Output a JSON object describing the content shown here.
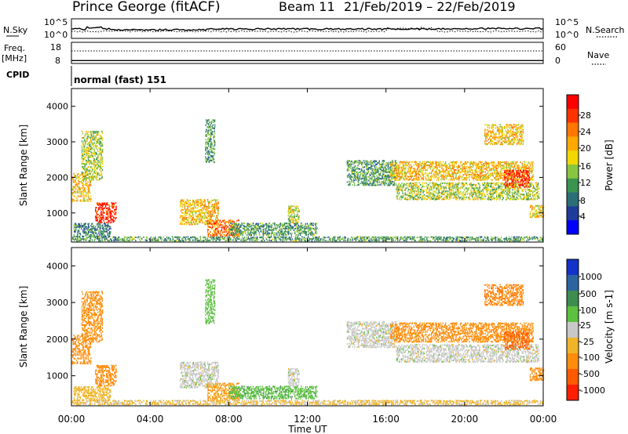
{
  "chart_data": {
    "type": "heatmap",
    "title": "Prince George (fitACF)",
    "header": {
      "beam": "Beam 11",
      "date_range": "21/Feb/2019 – 22/Feb/2019"
    },
    "xlabel": "Time UT",
    "x_ticks": [
      "00:00",
      "04:00",
      "08:00",
      "12:00",
      "16:00",
      "20:00",
      "00:00"
    ],
    "xlim_hours": [
      0,
      24
    ],
    "mode_label": "normal (fast) 151",
    "noise_panel": {
      "left_label": "N.Sky",
      "right_label": "N.Search",
      "left_ticks": [
        "10^5",
        "10^0"
      ],
      "right_ticks": [
        "10^5",
        "10^0"
      ]
    },
    "freq_panel": {
      "left_label": "Freq.",
      "left_unit": "[MHz]",
      "left_ticks": [
        18,
        8
      ],
      "right_label": "Nave",
      "right_ticks": [
        60,
        0
      ],
      "cpid_label": "CPID",
      "freq_mhz": 10.5,
      "nave": 40
    },
    "range_panels": [
      {
        "id": "power",
        "ylabel": "Slant Range [km]",
        "ylim": [
          180,
          4500
        ],
        "y_ticks": [
          1000,
          2000,
          3000,
          4000
        ],
        "colorbar": {
          "label": "Power [dB]",
          "tick_labels": [
            "28",
            "24",
            "20",
            "16",
            "12",
            "8",
            "4"
          ],
          "colors": [
            "#ff0000",
            "#ff3300",
            "#ff7700",
            "#ffa800",
            "#f0d800",
            "#88c640",
            "#3a9450",
            "#2c6e78",
            "#1e3c9a",
            "#0000ff"
          ]
        }
      },
      {
        "id": "velocity",
        "ylabel": "Slant Range [km]",
        "ylim": [
          180,
          4500
        ],
        "y_ticks": [
          1000,
          2000,
          3000,
          4000
        ],
        "colorbar": {
          "label": "Velocity [m s-1]",
          "tick_labels": [
            "1000",
            "500",
            "100",
            "25",
            "-25",
            "-100",
            "-500",
            "-1000"
          ],
          "colors": [
            "#1432c8",
            "#2c64a0",
            "#3e8c50",
            "#5cc040",
            "#c8c8c8",
            "#f0b428",
            "#ff8c0a",
            "#ff5a00",
            "#ff1e00"
          ]
        }
      }
    ],
    "echo_regions": [
      {
        "t0": 0.0,
        "t1": 1.0,
        "r0": 1300,
        "r1": 2100,
        "power_db": 20,
        "velocity": -300
      },
      {
        "t0": 0.5,
        "t1": 1.6,
        "r0": 1900,
        "r1": 3300,
        "power_db": 16,
        "velocity": -150
      },
      {
        "t0": 1.2,
        "t1": 2.3,
        "r0": 700,
        "r1": 1300,
        "power_db": 28,
        "velocity": -200
      },
      {
        "t0": 0.1,
        "t1": 2.0,
        "r0": 300,
        "r1": 700,
        "power_db": 10,
        "velocity": -60
      },
      {
        "t0": 5.5,
        "t1": 7.5,
        "r0": 650,
        "r1": 1350,
        "power_db": 20,
        "velocity": 0
      },
      {
        "t0": 6.8,
        "t1": 7.3,
        "r0": 2400,
        "r1": 3600,
        "power_db": 12,
        "velocity": 50
      },
      {
        "t0": 6.9,
        "t1": 8.5,
        "r0": 300,
        "r1": 800,
        "power_db": 24,
        "velocity": -100
      },
      {
        "t0": 8.0,
        "t1": 12.5,
        "r0": 350,
        "r1": 700,
        "power_db": 12,
        "velocity": 80
      },
      {
        "t0": 11.0,
        "t1": 11.6,
        "r0": 700,
        "r1": 1200,
        "power_db": 16,
        "velocity": 0
      },
      {
        "t0": 0.0,
        "t1": 24.0,
        "r0": 190,
        "r1": 330,
        "power_db": 12,
        "velocity": -40
      },
      {
        "t0": 14.0,
        "t1": 16.5,
        "r0": 1750,
        "r1": 2450,
        "power_db": 12,
        "velocity": 0
      },
      {
        "t0": 16.2,
        "t1": 23.5,
        "r0": 1900,
        "r1": 2450,
        "power_db": 20,
        "velocity": -150
      },
      {
        "t0": 16.5,
        "t1": 23.8,
        "r0": 1350,
        "r1": 1850,
        "power_db": 16,
        "velocity": 0
      },
      {
        "t0": 21.0,
        "t1": 23.0,
        "r0": 2900,
        "r1": 3500,
        "power_db": 20,
        "velocity": -400
      },
      {
        "t0": 22.0,
        "t1": 23.3,
        "r0": 1700,
        "r1": 2200,
        "power_db": 28,
        "velocity": -600
      },
      {
        "t0": 23.3,
        "t1": 24.0,
        "r0": 850,
        "r1": 1200,
        "power_db": 20,
        "velocity": -200
      }
    ]
  }
}
